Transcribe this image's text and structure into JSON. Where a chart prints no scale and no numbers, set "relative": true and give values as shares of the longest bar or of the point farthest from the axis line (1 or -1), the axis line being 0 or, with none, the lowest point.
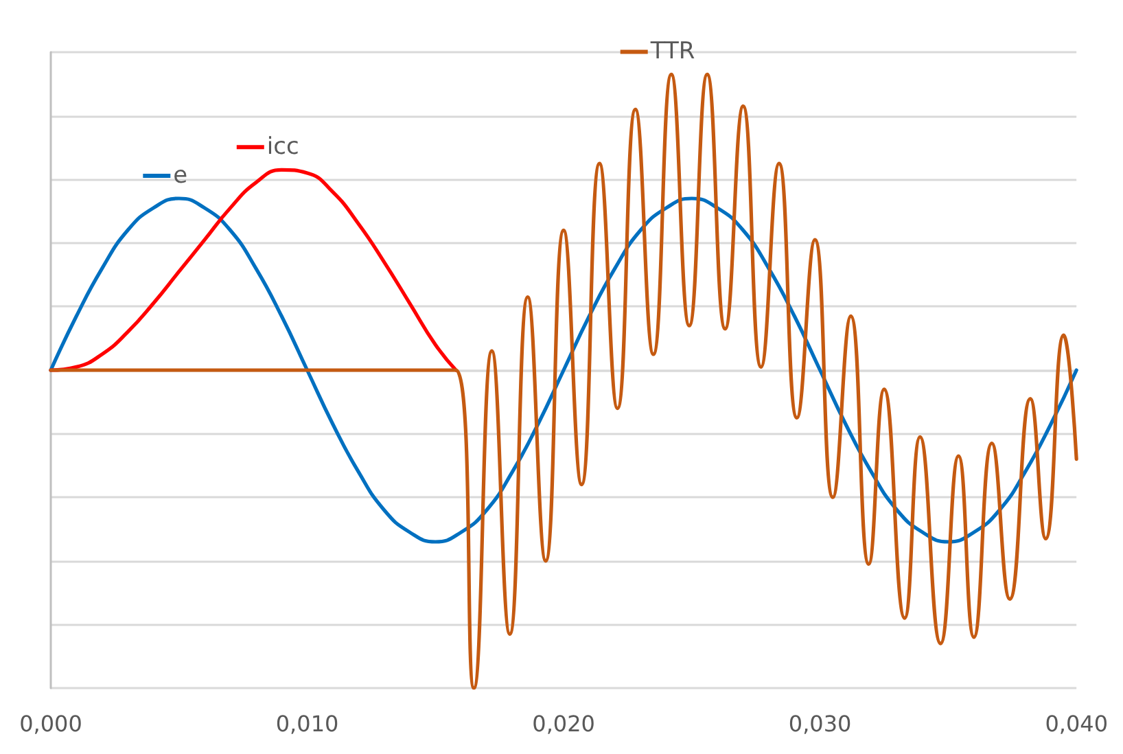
{
  "chart_data": {
    "type": "line",
    "relative": true,
    "xlim": [
      0,
      0.04
    ],
    "xticks": [
      {
        "value": 0,
        "label": "0,000"
      },
      {
        "value": 0.01,
        "label": "0,010"
      },
      {
        "value": 0.02,
        "label": "0,020"
      },
      {
        "value": 0.03,
        "label": "0,030"
      },
      {
        "value": 0.04,
        "label": "0,040"
      }
    ],
    "grid": "y",
    "legend": "top",
    "marker": "none",
    "line_style": "solid",
    "series": [
      {
        "name": "e",
        "color": "#0070c0",
        "x": [
          0,
          0.001,
          0.002,
          0.003,
          0.004,
          0.005,
          0.006,
          0.007,
          0.008,
          0.009,
          0.01,
          0.011,
          0.012,
          0.013,
          0.014,
          0.015,
          0.016,
          0.017,
          0.018,
          0.019,
          0.02,
          0.021,
          0.022,
          0.023,
          0.024,
          0.025,
          0.026,
          0.027,
          0.028,
          0.029,
          0.03,
          0.031,
          0.032,
          0.033,
          0.034,
          0.035,
          0.036,
          0.037,
          0.038,
          0.039,
          0.04
        ],
        "values": [
          0,
          0.17,
          0.32,
          0.44,
          0.51,
          0.54,
          0.51,
          0.44,
          0.32,
          0.17,
          0,
          -0.17,
          -0.32,
          -0.44,
          -0.51,
          -0.54,
          -0.51,
          -0.44,
          -0.32,
          -0.17,
          0,
          0.17,
          0.32,
          0.44,
          0.51,
          0.54,
          0.51,
          0.44,
          0.32,
          0.17,
          0,
          -0.17,
          -0.32,
          -0.44,
          -0.51,
          -0.54,
          -0.51,
          -0.44,
          -0.32,
          -0.17,
          0
        ]
      },
      {
        "name": "icc",
        "color": "#ff0000",
        "x": [
          0,
          0.001,
          0.002,
          0.003,
          0.004,
          0.005,
          0.006,
          0.007,
          0.008,
          0.009,
          0.01,
          0.011,
          0.012,
          0.013,
          0.014,
          0.015,
          0.0158
        ],
        "values": [
          0,
          0.01,
          0.05,
          0.12,
          0.21,
          0.31,
          0.41,
          0.51,
          0.59,
          0.63,
          0.62,
          0.56,
          0.46,
          0.34,
          0.21,
          0.08,
          0
        ]
      },
      {
        "name": "TTR",
        "color": "#c55a11",
        "x": [
          0,
          0.0158,
          0.0165,
          0.0172,
          0.0179,
          0.0186,
          0.0193,
          0.02,
          0.0207,
          0.0214,
          0.0221,
          0.0228,
          0.0235,
          0.0242,
          0.0249,
          0.0256,
          0.0263,
          0.027,
          0.0277,
          0.0284,
          0.0291,
          0.0298,
          0.0305,
          0.0312,
          0.0319,
          0.0325,
          0.0333,
          0.0339,
          0.0347,
          0.0354,
          0.036,
          0.0367,
          0.0374,
          0.0382,
          0.0388,
          0.0395,
          0.04
        ],
        "values": [
          0,
          0,
          -1,
          0.06,
          -0.83,
          0.23,
          -0.6,
          0.44,
          -0.36,
          0.65,
          -0.12,
          0.82,
          0.05,
          0.93,
          0.14,
          0.93,
          0.13,
          0.83,
          0.01,
          0.65,
          -0.15,
          0.41,
          -0.4,
          0.17,
          -0.61,
          -0.06,
          -0.78,
          -0.21,
          -0.86,
          -0.27,
          -0.84,
          -0.23,
          -0.72,
          -0.09,
          -0.53,
          0.11,
          -0.28
        ]
      }
    ]
  }
}
